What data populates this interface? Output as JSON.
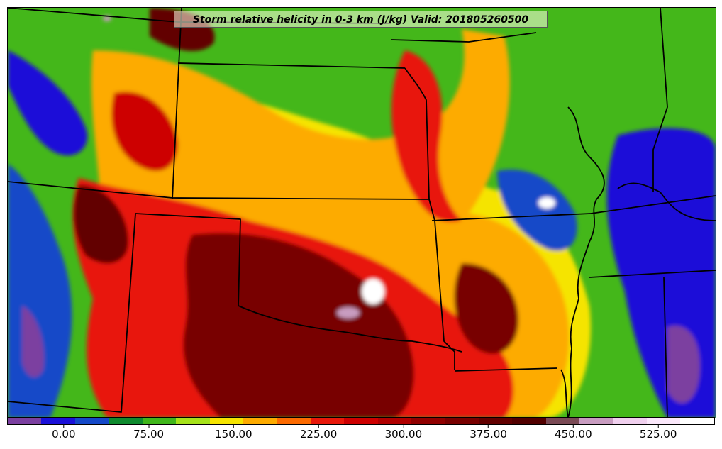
{
  "title": "Storm relative helicity in 0-3 km (J/kg) Valid: 201805260500",
  "colorbar": {
    "colors": [
      "#7b3fa0",
      "#1a10d8",
      "#1448c8",
      "#0e8a2e",
      "#3fb61a",
      "#a6e21a",
      "#f5e400",
      "#fdab00",
      "#fc6a00",
      "#e8180a",
      "#cd0000",
      "#b00000",
      "#900000",
      "#780000",
      "#620000",
      "#520000",
      "#7a4a55",
      "#c89cc0",
      "#f0d0ee",
      "#fbe8fb",
      "#ffffff"
    ],
    "tick_labels": [
      "0.00",
      "75.00",
      "150.00",
      "225.00",
      "300.00",
      "375.00",
      "450.00",
      "525.00"
    ],
    "tick_values": [
      0,
      75,
      150,
      225,
      300,
      375,
      450,
      525
    ],
    "range": [
      -50,
      575
    ]
  },
  "map": {
    "background_color": "#44b71a",
    "boundary_color": "#000000"
  }
}
